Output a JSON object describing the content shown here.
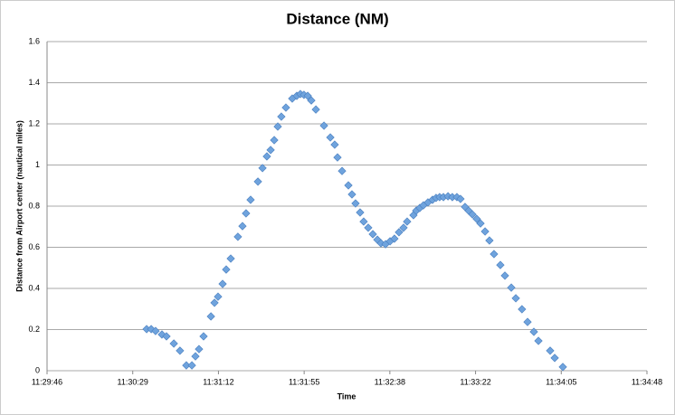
{
  "chart_data": {
    "type": "scatter",
    "title": "Distance (NM)",
    "x_label": "Time",
    "y_label": "Distance from Airport center (nautical miles)",
    "marker": "diamond",
    "color": "#6fa3dd",
    "grid": true,
    "xlim": [
      41386,
      41688.4
    ],
    "xticks": [
      {
        "value": 41386,
        "label": "11:29:46"
      },
      {
        "value": 41429.2,
        "label": "11:30:29"
      },
      {
        "value": 41472.4,
        "label": "11:31:12"
      },
      {
        "value": 41515.6,
        "label": "11:31:55"
      },
      {
        "value": 41558.8,
        "label": "11:32:38"
      },
      {
        "value": 41602,
        "label": "11:33:22"
      },
      {
        "value": 41645.2,
        "label": "11:34:05"
      },
      {
        "value": 41688.4,
        "label": "11:34:48"
      }
    ],
    "ylim": [
      0,
      1.6
    ],
    "yticks": [
      0,
      0.2,
      0.4,
      0.6,
      0.8,
      1,
      1.2,
      1.4,
      1.6
    ],
    "x": [
      41436.2,
      41438.5,
      41440.7,
      41443.9,
      41446.2,
      41449.9,
      41453.0,
      41456.2,
      41459.0,
      41460.8,
      41462.6,
      41464.9,
      41468.6,
      41470.4,
      41472.2,
      41474.5,
      41476.3,
      41478.6,
      41482.2,
      41484.5,
      41486.3,
      41488.6,
      41492.3,
      41494.6,
      41496.8,
      41498.7,
      41500.5,
      41502.3,
      41504.1,
      41506.4,
      41509.6,
      41511.9,
      41513.7,
      41515.5,
      41517.4,
      41519.2,
      41521.5,
      41525.6,
      41528.8,
      41531.0,
      41532.4,
      41534.7,
      41537.9,
      41539.7,
      41541.5,
      41543.8,
      41545.6,
      41547.9,
      41550.2,
      41552.5,
      41554.3,
      41556.6,
      41558.9,
      41561.1,
      41563.4,
      41565.7,
      41567.5,
      41570.7,
      41572.1,
      41573.9,
      41575.7,
      41578.0,
      41580.3,
      41582.1,
      41583.9,
      41585.8,
      41588.1,
      41590.3,
      41592.6,
      41594.4,
      41596.7,
      41598.5,
      41600.4,
      41602.6,
      41604.5,
      41606.8,
      41609.0,
      41611.3,
      41614.5,
      41616.8,
      41620.0,
      41622.3,
      41625.4,
      41628.2,
      41631.4,
      41633.7,
      41639.6,
      41641.9,
      41646.0
    ],
    "values": [
      0.202,
      0.202,
      0.193,
      0.176,
      0.167,
      0.132,
      0.097,
      0.026,
      0.026,
      0.07,
      0.105,
      0.167,
      0.264,
      0.33,
      0.36,
      0.422,
      0.492,
      0.545,
      0.651,
      0.703,
      0.765,
      0.831,
      0.919,
      0.985,
      1.042,
      1.073,
      1.121,
      1.187,
      1.235,
      1.279,
      1.323,
      1.336,
      1.345,
      1.341,
      1.336,
      1.314,
      1.27,
      1.191,
      1.134,
      1.099,
      1.037,
      0.971,
      0.901,
      0.857,
      0.813,
      0.769,
      0.725,
      0.695,
      0.664,
      0.637,
      0.62,
      0.615,
      0.629,
      0.642,
      0.673,
      0.695,
      0.725,
      0.756,
      0.778,
      0.791,
      0.804,
      0.818,
      0.831,
      0.84,
      0.844,
      0.844,
      0.848,
      0.844,
      0.844,
      0.835,
      0.796,
      0.778,
      0.76,
      0.738,
      0.716,
      0.677,
      0.633,
      0.567,
      0.514,
      0.462,
      0.404,
      0.352,
      0.299,
      0.237,
      0.189,
      0.145,
      0.097,
      0.062,
      0.018
    ]
  }
}
